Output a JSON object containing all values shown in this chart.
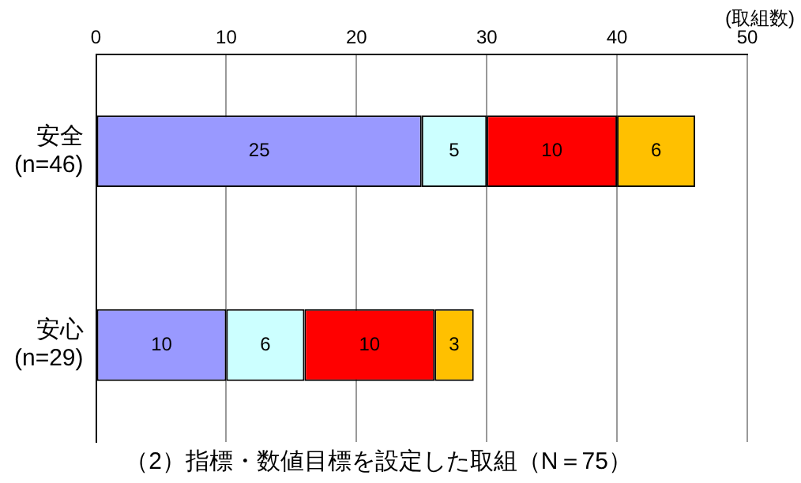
{
  "chart_data": {
    "type": "bar",
    "orientation": "horizontal",
    "stacked": true,
    "title": "（2）指標・数値目標を設定した取組（N＝75）",
    "xlabel": "(取組数)",
    "categories": [
      "安全\n(n=46)",
      "安心\n(n=29)"
    ],
    "series": [
      {
        "color": "#9999ff",
        "values": [
          25,
          10
        ]
      },
      {
        "color": "#ccffff",
        "values": [
          5,
          6
        ]
      },
      {
        "color": "#ff0000",
        "values": [
          10,
          10
        ]
      },
      {
        "color": "#ffc000",
        "values": [
          6,
          3
        ]
      }
    ],
    "xlim": [
      0,
      50
    ],
    "xticks": [
      0,
      10,
      20,
      30,
      40,
      50
    ],
    "grid": "x",
    "data_labels": true,
    "legend": false
  }
}
